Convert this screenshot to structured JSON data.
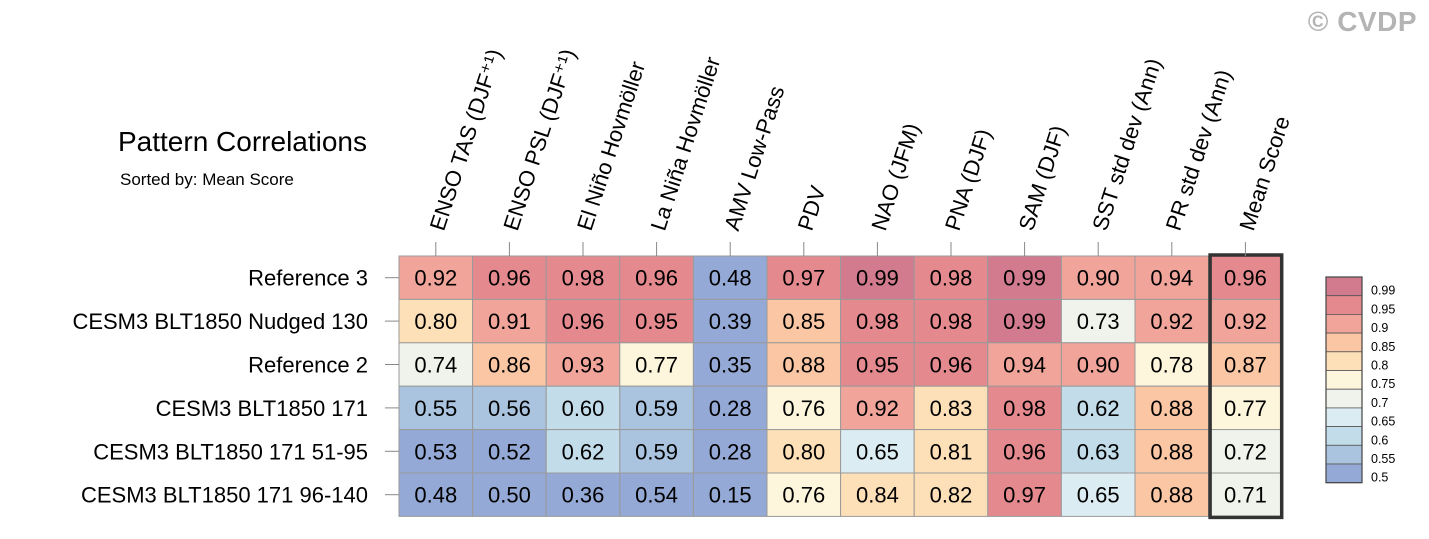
{
  "watermark": "© CVDP",
  "chart_data": {
    "type": "heatmap",
    "title": "Pattern Correlations",
    "subtitle": "Sorted by: Mean Score",
    "columns": [
      "ENSO TAS (DJF⁺¹)",
      "ENSO PSL (DJF⁺¹)",
      "El Niño Hovmöller",
      "La Niña Hovmöller",
      "AMV Low-Pass",
      "PDV",
      "NAO (JFM)",
      "PNA (DJF)",
      "SAM (DJF)",
      "SST std dev (Ann)",
      "PR std dev (Ann)",
      "Mean Score"
    ],
    "rows": [
      "Reference 3",
      "CESM3 BLT1850 Nudged 130",
      "Reference 2",
      "CESM3 BLT1850 171",
      "CESM3 BLT1850 171 51-95",
      "CESM3 BLT1850 171 96-140"
    ],
    "values": [
      [
        0.92,
        0.96,
        0.98,
        0.96,
        0.48,
        0.97,
        0.99,
        0.98,
        0.99,
        0.9,
        0.94,
        0.96
      ],
      [
        0.8,
        0.91,
        0.96,
        0.95,
        0.39,
        0.85,
        0.98,
        0.98,
        0.99,
        0.73,
        0.92,
        0.92
      ],
      [
        0.74,
        0.86,
        0.93,
        0.77,
        0.35,
        0.88,
        0.95,
        0.96,
        0.94,
        0.9,
        0.78,
        0.87
      ],
      [
        0.55,
        0.56,
        0.6,
        0.59,
        0.28,
        0.76,
        0.92,
        0.83,
        0.98,
        0.62,
        0.88,
        0.77
      ],
      [
        0.53,
        0.52,
        0.62,
        0.59,
        0.28,
        0.8,
        0.65,
        0.81,
        0.96,
        0.63,
        0.88,
        0.72
      ],
      [
        0.48,
        0.5,
        0.36,
        0.54,
        0.15,
        0.76,
        0.84,
        0.82,
        0.97,
        0.65,
        0.88,
        0.71
      ]
    ],
    "highlight_column": "Mean Score",
    "colorbar": {
      "levels": [
        "0.99",
        "0.95",
        "0.9",
        "0.85",
        "0.8",
        "0.75",
        "0.7",
        "0.65",
        "0.6",
        "0.55",
        "0.5"
      ],
      "colors": [
        "#d27b8e",
        "#e4898e",
        "#f0a49a",
        "#fac6a3",
        "#fde0b8",
        "#fdf6dd",
        "#eff3eb",
        "#dbecf2",
        "#c3dcea",
        "#aac4df",
        "#94a9d5"
      ]
    }
  }
}
